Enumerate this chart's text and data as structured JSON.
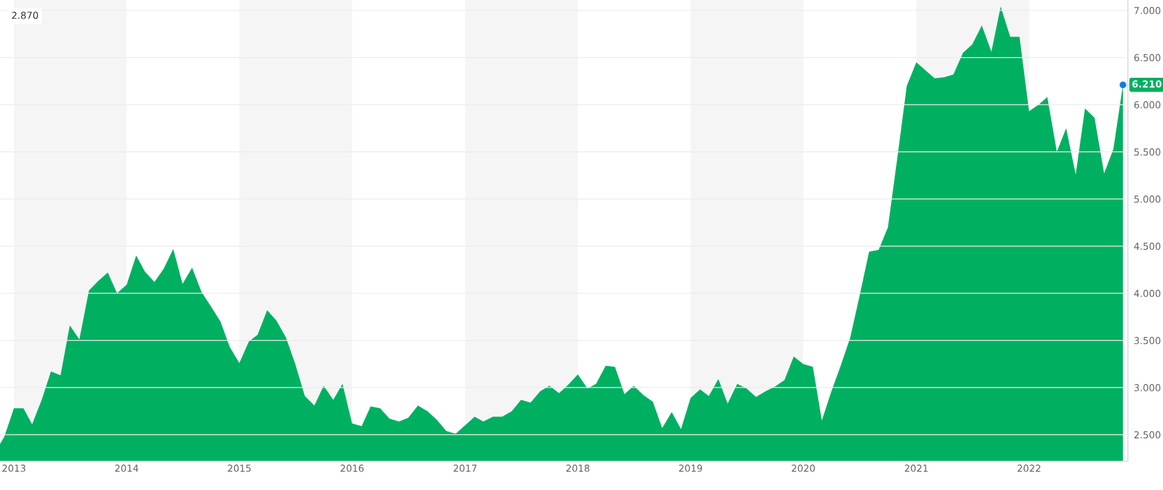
{
  "chart_data": {
    "type": "area",
    "x": [
      "2012-11-17",
      "2012-12",
      "2013-01",
      "2013-02",
      "2013-03",
      "2013-04",
      "2013-05",
      "2013-06",
      "2013-07",
      "2013-08",
      "2013-09",
      "2013-10",
      "2013-11",
      "2013-12",
      "2014-01",
      "2014-02",
      "2014-03",
      "2014-04",
      "2014-05",
      "2014-06",
      "2014-07",
      "2014-08",
      "2014-09",
      "2014-10",
      "2014-11",
      "2014-12",
      "2015-01",
      "2015-02",
      "2015-03",
      "2015-04",
      "2015-05",
      "2015-06",
      "2015-07",
      "2015-08",
      "2015-09",
      "2015-10",
      "2015-11",
      "2015-12",
      "2016-01",
      "2016-02",
      "2016-03",
      "2016-04",
      "2016-05",
      "2016-06",
      "2016-07",
      "2016-08",
      "2016-09",
      "2016-10",
      "2016-11",
      "2016-12",
      "2017-01",
      "2017-02",
      "2017-03",
      "2017-04",
      "2017-05",
      "2017-06",
      "2017-07",
      "2017-08",
      "2017-09",
      "2017-10",
      "2017-11",
      "2017-12",
      "2018-01",
      "2018-02",
      "2018-03",
      "2018-04",
      "2018-05",
      "2018-06",
      "2018-07",
      "2018-08",
      "2018-09",
      "2018-10",
      "2018-11",
      "2018-12",
      "2019-01",
      "2019-02",
      "2019-03",
      "2019-04",
      "2019-05",
      "2019-06",
      "2019-07",
      "2019-08",
      "2019-09",
      "2019-10",
      "2019-11",
      "2019-12",
      "2020-01",
      "2020-02",
      "2020-03",
      "2020-04",
      "2020-05",
      "2020-06",
      "2020-07",
      "2020-08",
      "2020-09",
      "2020-10",
      "2020-11",
      "2020-12",
      "2021-01",
      "2021-02",
      "2021-03",
      "2021-04",
      "2021-05",
      "2021-06",
      "2021-07",
      "2021-08",
      "2021-09",
      "2021-10",
      "2021-11",
      "2021-12",
      "2022-01",
      "2022-02",
      "2022-03",
      "2022-04",
      "2022-05",
      "2022-06",
      "2022-07",
      "2022-08",
      "2022-09",
      "2022-10",
      "2022-11"
    ],
    "series": [
      {
        "color": "#00b061",
        "values": [
          2.4,
          2.48,
          2.78,
          2.78,
          2.61,
          2.87,
          3.17,
          3.13,
          3.66,
          3.51,
          4.03,
          4.13,
          4.22,
          4.0,
          4.09,
          4.4,
          4.23,
          4.12,
          4.26,
          4.47,
          4.1,
          4.27,
          4.01,
          3.86,
          3.7,
          3.43,
          3.26,
          3.49,
          3.56,
          3.82,
          3.71,
          3.53,
          3.25,
          2.91,
          2.81,
          3.02,
          2.87,
          3.04,
          2.62,
          2.59,
          2.8,
          2.78,
          2.67,
          2.64,
          2.68,
          2.81,
          2.75,
          2.66,
          2.54,
          2.51,
          2.6,
          2.69,
          2.64,
          2.69,
          2.69,
          2.75,
          2.87,
          2.84,
          2.96,
          3.02,
          2.94,
          3.03,
          3.14,
          2.99,
          3.04,
          3.23,
          3.22,
          2.93,
          3.02,
          2.92,
          2.85,
          2.57,
          2.74,
          2.56,
          2.89,
          2.98,
          2.91,
          3.09,
          2.83,
          3.04,
          2.99,
          2.9,
          2.96,
          3.01,
          3.08,
          3.33,
          3.25,
          3.22,
          2.65,
          2.96,
          3.23,
          3.53,
          3.97,
          4.44,
          4.46,
          4.7,
          5.45,
          6.2,
          6.45,
          6.36,
          6.28,
          6.29,
          6.32,
          6.55,
          6.64,
          6.84,
          6.56,
          7.04,
          6.72,
          6.72,
          5.93,
          6.0,
          6.08,
          5.5,
          5.75,
          5.26,
          5.96,
          5.86,
          5.27,
          5.53,
          6.21
        ]
      }
    ],
    "xlim": [
      "2012-11-17",
      "2022-11-17"
    ],
    "xticks": [
      "2013",
      "2014",
      "2015",
      "2016",
      "2017",
      "2018",
      "2019",
      "2020",
      "2021",
      "2022"
    ],
    "ylim": [
      2.22,
      7.11
    ],
    "yticks": [
      {
        "value": 2.5,
        "label": "2.500"
      },
      {
        "value": 3.0,
        "label": "3.000"
      },
      {
        "value": 3.5,
        "label": "3.500"
      },
      {
        "value": 4.0,
        "label": "4.000"
      },
      {
        "value": 4.5,
        "label": "4.500"
      },
      {
        "value": 5.0,
        "label": "5.000"
      },
      {
        "value": 5.5,
        "label": "5.500"
      },
      {
        "value": 6.0,
        "label": "6.000"
      },
      {
        "value": 6.5,
        "label": "6.500"
      },
      {
        "value": 7.0,
        "label": "7.000"
      }
    ],
    "grid": "y",
    "bands": [
      {
        "axis": "x",
        "from": "2013",
        "to": "2014",
        "color": "#f5f5f5"
      },
      {
        "axis": "x",
        "from": "2015",
        "to": "2016",
        "color": "#f5f5f5"
      },
      {
        "axis": "x",
        "from": "2017",
        "to": "2018",
        "color": "#f5f5f5"
      },
      {
        "axis": "x",
        "from": "2019",
        "to": "2020",
        "color": "#f5f5f5"
      },
      {
        "axis": "x",
        "from": "2021",
        "to": "2022",
        "color": "#f5f5f5"
      }
    ],
    "annotations": [
      "2.870",
      {
        "text": "6.210",
        "x": "2022-11",
        "y": 6.21
      }
    ]
  }
}
